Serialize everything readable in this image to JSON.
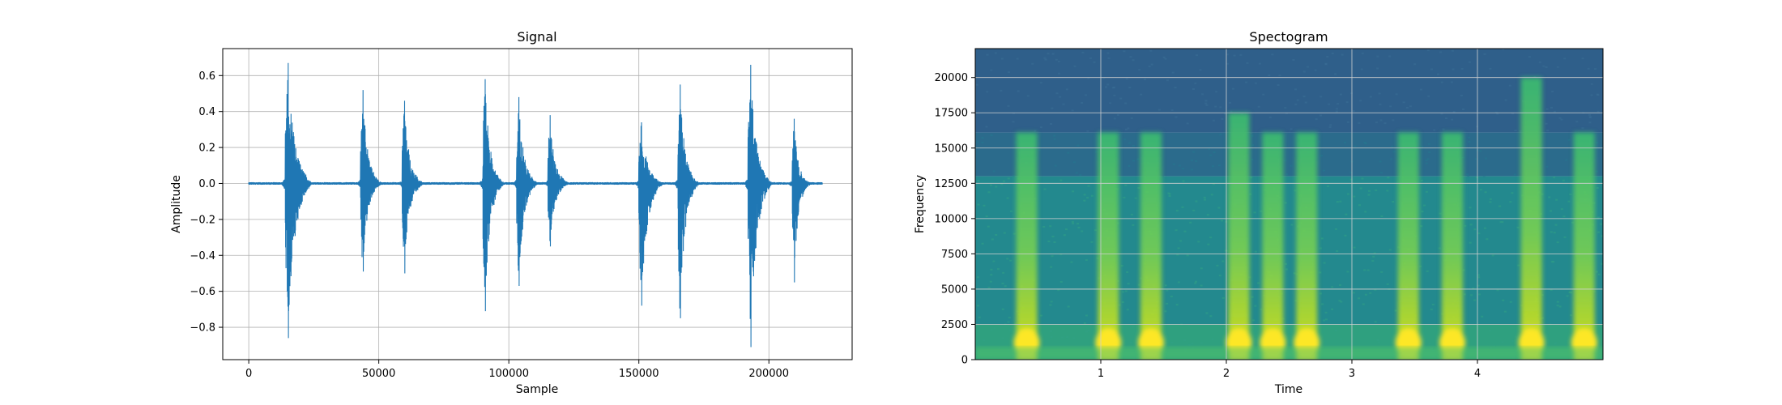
{
  "colors": {
    "signal": "#1f77b4",
    "grid": "#b0b0b0",
    "axis": "#000000",
    "spec_low": "#2f5f8a",
    "spec_mid": "#23898e",
    "spec_high": "#fde725"
  },
  "chart_data": [
    {
      "type": "line",
      "title": "Signal",
      "xlabel": "Sample",
      "ylabel": "Amplitude",
      "xlim": [
        -10000,
        232000
      ],
      "ylim": [
        -0.98,
        0.75
      ],
      "xticks": [
        0,
        50000,
        100000,
        150000,
        200000
      ],
      "xtick_labels": [
        "0",
        "50000",
        "100000",
        "150000",
        "200000"
      ],
      "yticks": [
        0.6,
        0.4,
        0.2,
        0.0,
        -0.2,
        -0.4,
        -0.6,
        -0.8
      ],
      "ytick_labels": [
        "0.6",
        "0.4",
        "0.2",
        "0.0",
        "−0.2",
        "−0.4",
        "−0.6",
        "−0.8"
      ],
      "grid": true,
      "signal_length": 220500,
      "bursts": [
        {
          "start": 14000,
          "end": 22000,
          "max": 0.67,
          "min": -0.86
        },
        {
          "start": 43000,
          "end": 49000,
          "max": 0.52,
          "min": -0.49
        },
        {
          "start": 59000,
          "end": 65000,
          "max": 0.46,
          "min": -0.5
        },
        {
          "start": 90000,
          "end": 96000,
          "max": 0.58,
          "min": -0.71
        },
        {
          "start": 103000,
          "end": 109000,
          "max": 0.48,
          "min": -0.57
        },
        {
          "start": 115000,
          "end": 121000,
          "max": 0.38,
          "min": -0.35
        },
        {
          "start": 150000,
          "end": 157000,
          "max": 0.34,
          "min": -0.68
        },
        {
          "start": 165000,
          "end": 171000,
          "max": 0.55,
          "min": -0.75
        },
        {
          "start": 192000,
          "end": 199000,
          "max": 0.66,
          "min": -0.91
        },
        {
          "start": 209000,
          "end": 214000,
          "max": 0.36,
          "min": -0.55
        }
      ]
    },
    {
      "type": "heatmap",
      "title": "Spectogram",
      "xlabel": "Time",
      "ylabel": "Frequency",
      "xlim": [
        0,
        5.0
      ],
      "ylim": [
        0,
        22050
      ],
      "xticks": [
        1,
        2,
        3,
        4
      ],
      "xtick_labels": [
        "1",
        "2",
        "3",
        "4"
      ],
      "yticks": [
        0,
        2500,
        5000,
        7500,
        10000,
        12500,
        15000,
        17500,
        20000
      ],
      "ytick_labels": [
        "0",
        "2500",
        "5000",
        "7500",
        "10000",
        "12500",
        "15000",
        "17500",
        "20000"
      ],
      "grid": true,
      "colormap": "viridis",
      "bursts_time": [
        {
          "center": 0.41,
          "top": 16100
        },
        {
          "center": 1.06,
          "top": 16100
        },
        {
          "center": 1.4,
          "top": 16100
        },
        {
          "center": 2.1,
          "top": 17500
        },
        {
          "center": 2.37,
          "top": 16100
        },
        {
          "center": 2.64,
          "top": 16100
        },
        {
          "center": 3.45,
          "top": 16100
        },
        {
          "center": 3.8,
          "top": 16100
        },
        {
          "center": 4.43,
          "top": 20000
        },
        {
          "center": 4.85,
          "top": 16100
        }
      ],
      "band_edges_hz": [
        13000,
        16100
      ]
    }
  ]
}
